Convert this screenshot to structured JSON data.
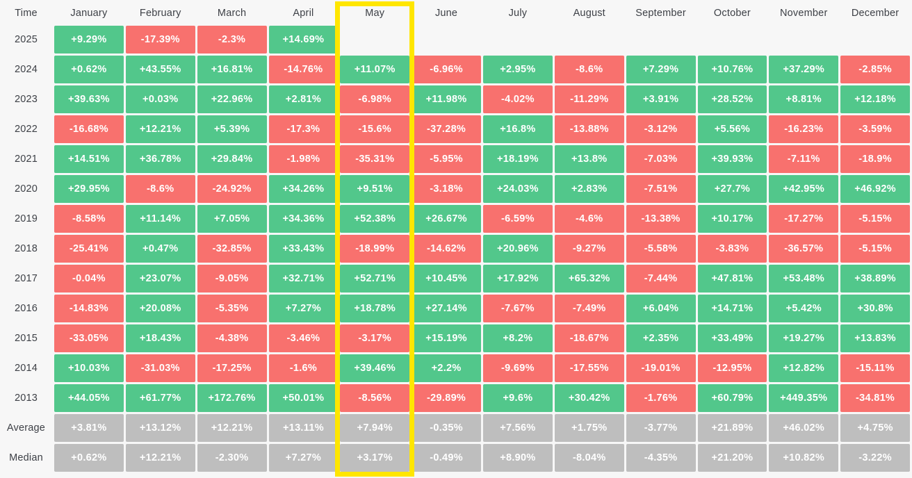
{
  "colors": {
    "background": "#F7F7F7",
    "positive": "#52C78B",
    "negative": "#F8716E",
    "summary": "#BEBEBE",
    "cell-text": "#FFFFFF",
    "label-text": "#3D4046",
    "highlight": "#FFE600"
  },
  "chart_data": {
    "type": "heatmap",
    "corner_label": "Time",
    "columns": [
      "January",
      "February",
      "March",
      "April",
      "May",
      "June",
      "July",
      "August",
      "September",
      "October",
      "November",
      "December"
    ],
    "highlighted_column": "May",
    "rows": [
      {
        "label": "2025",
        "type": "year",
        "values": [
          "+9.29%",
          "-17.39%",
          "-2.3%",
          "+14.69%",
          null,
          null,
          null,
          null,
          null,
          null,
          null,
          null
        ]
      },
      {
        "label": "2024",
        "type": "year",
        "values": [
          "+0.62%",
          "+43.55%",
          "+16.81%",
          "-14.76%",
          "+11.07%",
          "-6.96%",
          "+2.95%",
          "-8.6%",
          "+7.29%",
          "+10.76%",
          "+37.29%",
          "-2.85%"
        ]
      },
      {
        "label": "2023",
        "type": "year",
        "values": [
          "+39.63%",
          "+0.03%",
          "+22.96%",
          "+2.81%",
          "-6.98%",
          "+11.98%",
          "-4.02%",
          "-11.29%",
          "+3.91%",
          "+28.52%",
          "+8.81%",
          "+12.18%"
        ]
      },
      {
        "label": "2022",
        "type": "year",
        "values": [
          "-16.68%",
          "+12.21%",
          "+5.39%",
          "-17.3%",
          "-15.6%",
          "-37.28%",
          "+16.8%",
          "-13.88%",
          "-3.12%",
          "+5.56%",
          "-16.23%",
          "-3.59%"
        ]
      },
      {
        "label": "2021",
        "type": "year",
        "values": [
          "+14.51%",
          "+36.78%",
          "+29.84%",
          "-1.98%",
          "-35.31%",
          "-5.95%",
          "+18.19%",
          "+13.8%",
          "-7.03%",
          "+39.93%",
          "-7.11%",
          "-18.9%"
        ]
      },
      {
        "label": "2020",
        "type": "year",
        "values": [
          "+29.95%",
          "-8.6%",
          "-24.92%",
          "+34.26%",
          "+9.51%",
          "-3.18%",
          "+24.03%",
          "+2.83%",
          "-7.51%",
          "+27.7%",
          "+42.95%",
          "+46.92%"
        ]
      },
      {
        "label": "2019",
        "type": "year",
        "values": [
          "-8.58%",
          "+11.14%",
          "+7.05%",
          "+34.36%",
          "+52.38%",
          "+26.67%",
          "-6.59%",
          "-4.6%",
          "-13.38%",
          "+10.17%",
          "-17.27%",
          "-5.15%"
        ]
      },
      {
        "label": "2018",
        "type": "year",
        "values": [
          "-25.41%",
          "+0.47%",
          "-32.85%",
          "+33.43%",
          "-18.99%",
          "-14.62%",
          "+20.96%",
          "-9.27%",
          "-5.58%",
          "-3.83%",
          "-36.57%",
          "-5.15%"
        ]
      },
      {
        "label": "2017",
        "type": "year",
        "values": [
          "-0.04%",
          "+23.07%",
          "-9.05%",
          "+32.71%",
          "+52.71%",
          "+10.45%",
          "+17.92%",
          "+65.32%",
          "-7.44%",
          "+47.81%",
          "+53.48%",
          "+38.89%"
        ]
      },
      {
        "label": "2016",
        "type": "year",
        "values": [
          "-14.83%",
          "+20.08%",
          "-5.35%",
          "+7.27%",
          "+18.78%",
          "+27.14%",
          "-7.67%",
          "-7.49%",
          "+6.04%",
          "+14.71%",
          "+5.42%",
          "+30.8%"
        ]
      },
      {
        "label": "2015",
        "type": "year",
        "values": [
          "-33.05%",
          "+18.43%",
          "-4.38%",
          "-3.46%",
          "-3.17%",
          "+15.19%",
          "+8.2%",
          "-18.67%",
          "+2.35%",
          "+33.49%",
          "+19.27%",
          "+13.83%"
        ]
      },
      {
        "label": "2014",
        "type": "year",
        "values": [
          "+10.03%",
          "-31.03%",
          "-17.25%",
          "-1.6%",
          "+39.46%",
          "+2.2%",
          "-9.69%",
          "-17.55%",
          "-19.01%",
          "-12.95%",
          "+12.82%",
          "-15.11%"
        ]
      },
      {
        "label": "2013",
        "type": "year",
        "values": [
          "+44.05%",
          "+61.77%",
          "+172.76%",
          "+50.01%",
          "-8.56%",
          "-29.89%",
          "+9.6%",
          "+30.42%",
          "-1.76%",
          "+60.79%",
          "+449.35%",
          "-34.81%"
        ]
      },
      {
        "label": "Average",
        "type": "summary",
        "values": [
          "+3.81%",
          "+13.12%",
          "+12.21%",
          "+13.11%",
          "+7.94%",
          "-0.35%",
          "+7.56%",
          "+1.75%",
          "-3.77%",
          "+21.89%",
          "+46.02%",
          "+4.75%"
        ]
      },
      {
        "label": "Median",
        "type": "summary",
        "values": [
          "+0.62%",
          "+12.21%",
          "-2.30%",
          "+7.27%",
          "+3.17%",
          "-0.49%",
          "+8.90%",
          "-8.04%",
          "-4.35%",
          "+21.20%",
          "+10.82%",
          "-3.22%"
        ]
      }
    ]
  }
}
